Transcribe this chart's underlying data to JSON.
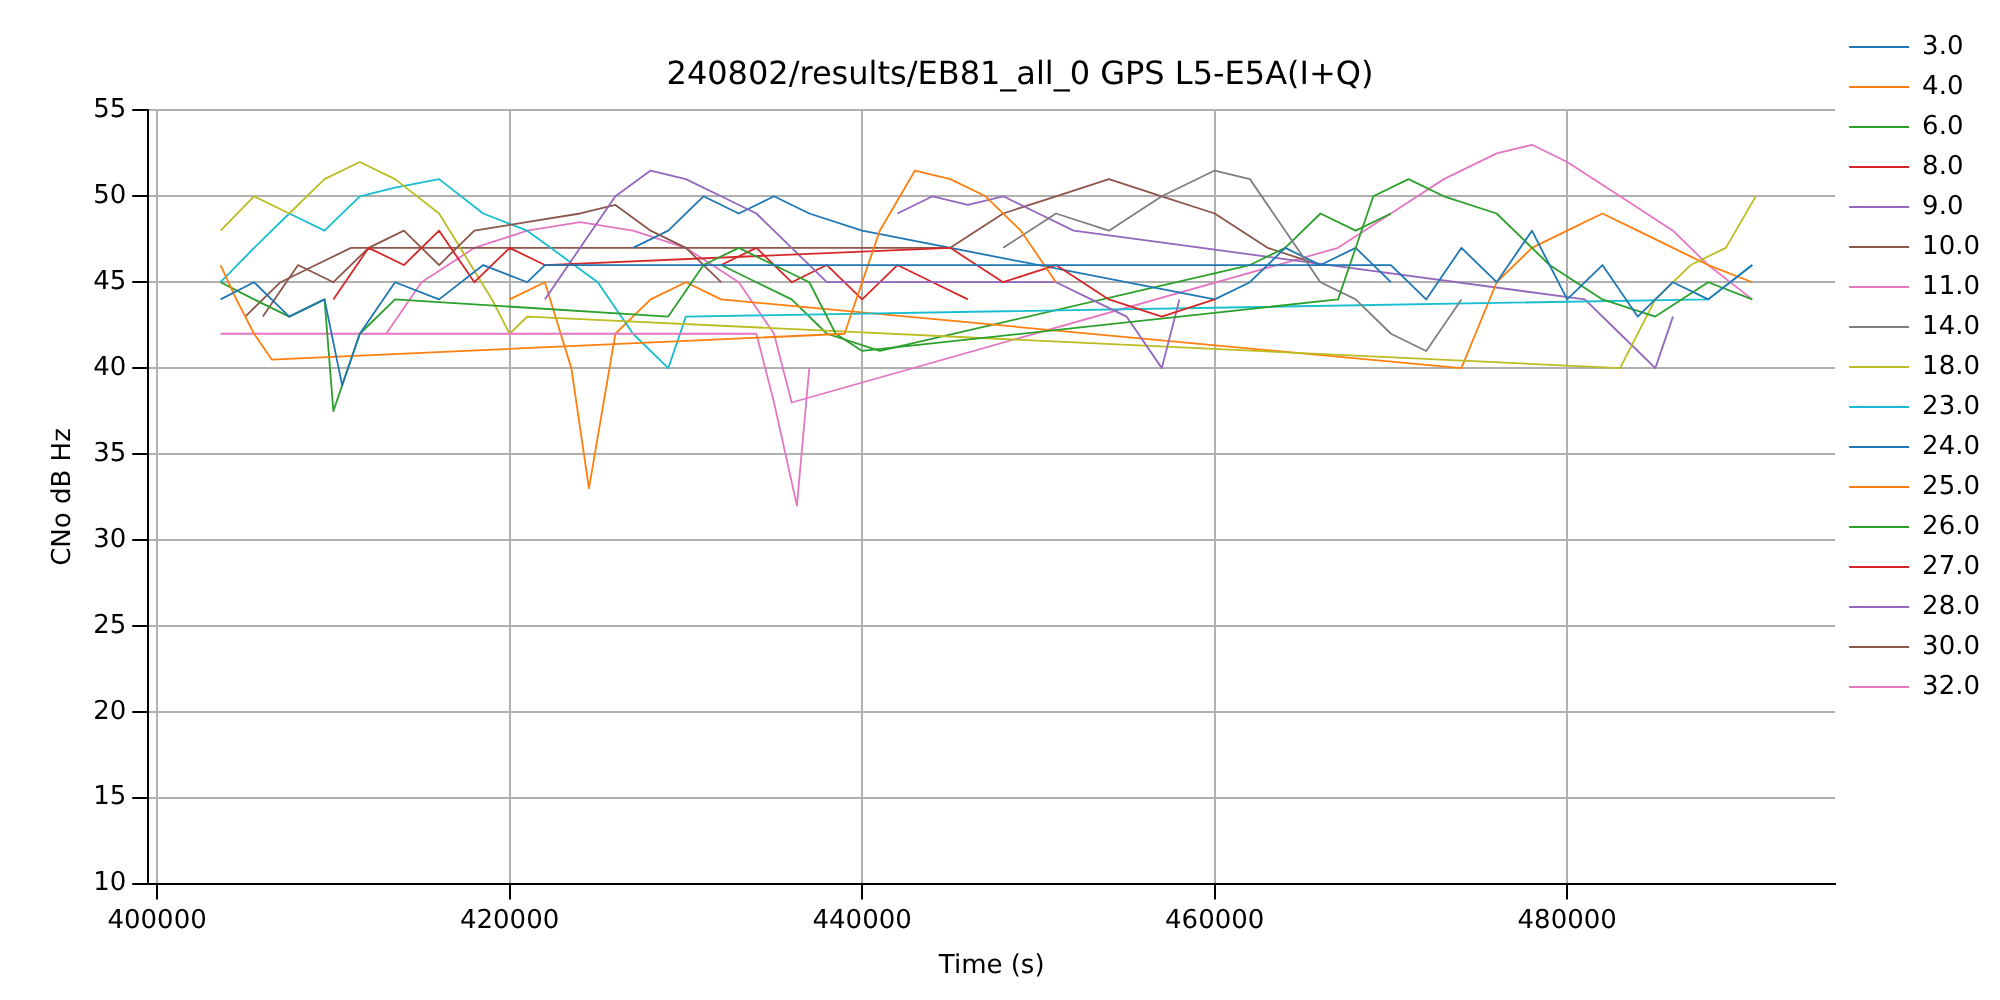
{
  "chart_data": {
    "type": "line",
    "title": "240802/results/EB81_all_0 GPS L5-E5A(I+Q)",
    "xlabel": "Time (s)",
    "ylabel": "CNo dB Hz",
    "xlim": [
      399500,
      495200
    ],
    "xticks": [
      400000,
      420000,
      440000,
      460000,
      480000
    ],
    "ylim": [
      10,
      55
    ],
    "yticks": [
      10,
      15,
      20,
      25,
      30,
      35,
      40,
      45,
      50,
      55
    ],
    "grid": true,
    "legend": "top right",
    "marker": "none",
    "line_style": "solid",
    "series": [
      {
        "name": "3.0",
        "color": "#1f77b4",
        "x": [
          403600,
          405500,
          407500,
          409500,
          410500,
          411500,
          413500,
          416000,
          418500,
          421000,
          422000,
          470000,
          472000,
          474000,
          476000,
          478000,
          480000,
          482000,
          484000,
          486000,
          488000,
          490500
        ],
        "values": [
          44,
          45,
          43,
          44,
          39,
          42,
          45,
          44,
          46,
          45,
          46,
          46,
          44,
          47,
          45,
          48,
          44,
          46,
          43,
          45,
          44,
          46
        ]
      },
      {
        "name": "4.0",
        "color": "#ff7f0e",
        "x": [
          403600,
          404500,
          405500,
          406500,
          439000,
          441000,
          443000,
          445000,
          447000,
          449000,
          451000
        ],
        "values": [
          46,
          44,
          42,
          40.5,
          42,
          48,
          51.5,
          51,
          50,
          48,
          45
        ]
      },
      {
        "name": "6.0",
        "color": "#2ca02c",
        "x": [
          403600,
          405500,
          407500,
          409500,
          410000,
          411500,
          413500,
          429000,
          431000,
          433000,
          435000,
          437000,
          438500,
          440000,
          467000,
          469000,
          471000,
          473000,
          476000,
          479000,
          482000,
          485000,
          488000,
          490500
        ],
        "values": [
          45,
          44,
          43,
          44,
          37.5,
          42,
          44,
          43,
          46,
          47,
          46,
          45,
          42,
          41,
          44,
          50,
          51,
          50,
          49,
          46,
          44,
          43,
          45,
          44
        ]
      },
      {
        "name": "8.0",
        "color": "#d62728",
        "x": [
          410000,
          412000,
          414000,
          416000,
          418000,
          420000,
          422000,
          445000,
          448000,
          451000,
          454000,
          457000,
          460000
        ],
        "values": [
          44,
          47,
          46,
          48,
          45,
          47,
          46,
          47,
          45,
          46,
          44,
          43,
          44
        ]
      },
      {
        "name": "9.0",
        "color": "#9467bd",
        "x": [
          422000,
          424000,
          426000,
          428000,
          430000,
          432000,
          434000,
          436000,
          438000,
          451000,
          453000,
          455000,
          457000,
          458000
        ],
        "values": [
          44,
          47,
          50,
          51.5,
          51,
          50,
          49,
          47,
          45,
          45,
          44,
          43,
          40,
          44
        ]
      },
      {
        "name": "10.0",
        "color": "#8c564b",
        "x": [
          406000,
          408000,
          410000,
          412000,
          414000,
          416000,
          418000,
          424000,
          426000,
          428000,
          430000,
          432000
        ],
        "values": [
          43,
          46,
          45,
          47,
          48,
          46,
          48,
          49,
          49.5,
          48,
          47,
          45
        ]
      },
      {
        "name": "11.0",
        "color": "#e377c2",
        "x": [
          403600,
          405000,
          434000,
          435000,
          436300,
          437000
        ],
        "values": [
          42,
          42,
          42,
          38,
          32,
          40
        ]
      },
      {
        "name": "14.0",
        "color": "#7f7f7f",
        "x": [
          448000,
          451000,
          454000,
          457000,
          460000,
          462000,
          466000,
          468000,
          470000,
          472000,
          474000
        ],
        "values": [
          47,
          49,
          48,
          50,
          51.5,
          51,
          45,
          44,
          42,
          41,
          44
        ]
      },
      {
        "name": "18.0",
        "color": "#bcbd22",
        "x": [
          403600,
          405500,
          407500,
          409500,
          411500,
          413500,
          416000,
          419000,
          420000,
          421000,
          483000,
          485000,
          487000,
          489000,
          490700
        ],
        "values": [
          48,
          50,
          49,
          51,
          52,
          51,
          49,
          44,
          42,
          43,
          40,
          44,
          46,
          47,
          50
        ]
      },
      {
        "name": "23.0",
        "color": "#17becf",
        "x": [
          403600,
          405500,
          407500,
          409500,
          411500,
          413500,
          416000,
          418500,
          421000,
          425000,
          427000,
          429000,
          430000,
          488000,
          490500
        ],
        "values": [
          45,
          47,
          49,
          48,
          50,
          50.5,
          51,
          49,
          48,
          45,
          42,
          40,
          43,
          44,
          46
        ]
      },
      {
        "name": "24.0",
        "color": "#1f77b4",
        "x": [
          427000,
          429000,
          431000,
          433000,
          435000,
          437000,
          440000,
          460000,
          462000,
          464000,
          466000,
          468000,
          470000
        ],
        "values": [
          47,
          48,
          50,
          49,
          50,
          49,
          48,
          44,
          45,
          47,
          46,
          47,
          45
        ]
      },
      {
        "name": "25.0",
        "color": "#ff7f0e",
        "x": [
          420000,
          422000,
          423500,
          424500,
          426000,
          428000,
          430000,
          432000,
          474000,
          476000,
          478000,
          480000,
          482000,
          484000,
          486000,
          488000,
          490500
        ],
        "values": [
          44,
          45,
          40,
          33,
          42,
          44,
          45,
          44,
          40,
          45,
          47,
          48,
          49,
          48,
          47,
          46,
          45
        ]
      },
      {
        "name": "26.0",
        "color": "#2ca02c",
        "x": [
          432000,
          434000,
          436000,
          438000,
          441000,
          462000,
          464000,
          466000,
          468000,
          470000
        ],
        "values": [
          46,
          45,
          44,
          42,
          41,
          46,
          47,
          49,
          48,
          49
        ]
      },
      {
        "name": "27.0",
        "color": "#d62728",
        "x": [
          432000,
          434000,
          436000,
          438000,
          440000,
          442000,
          444000,
          446000
        ],
        "values": [
          46,
          47,
          45,
          46,
          44,
          46,
          45,
          44
        ]
      },
      {
        "name": "28.0",
        "color": "#9467bd",
        "x": [
          442000,
          444000,
          446000,
          448000,
          450000,
          452000,
          481000,
          483000,
          485000,
          486000
        ],
        "values": [
          49,
          50,
          49.5,
          50,
          49,
          48,
          44,
          42,
          40,
          43
        ]
      },
      {
        "name": "30.0",
        "color": "#8c564b",
        "x": [
          405000,
          407000,
          409000,
          411000,
          445000,
          448000,
          451000,
          454000,
          457000,
          460000,
          463000,
          466000
        ],
        "values": [
          43,
          45,
          46,
          47,
          47,
          49,
          50,
          51,
          50,
          49,
          47,
          46
        ]
      },
      {
        "name": "32.0",
        "color": "#e377c2",
        "x": [
          413000,
          415000,
          418000,
          421000,
          424000,
          427000,
          430000,
          433000,
          435000,
          436000,
          467000,
          470000,
          473000,
          476000,
          478000,
          480000,
          483000,
          486000,
          488000,
          490500
        ],
        "values": [
          42,
          45,
          47,
          48,
          48.5,
          48,
          47,
          45,
          42,
          38,
          47,
          49,
          51,
          52.5,
          53,
          52,
          50,
          48,
          46,
          44
        ]
      }
    ]
  }
}
